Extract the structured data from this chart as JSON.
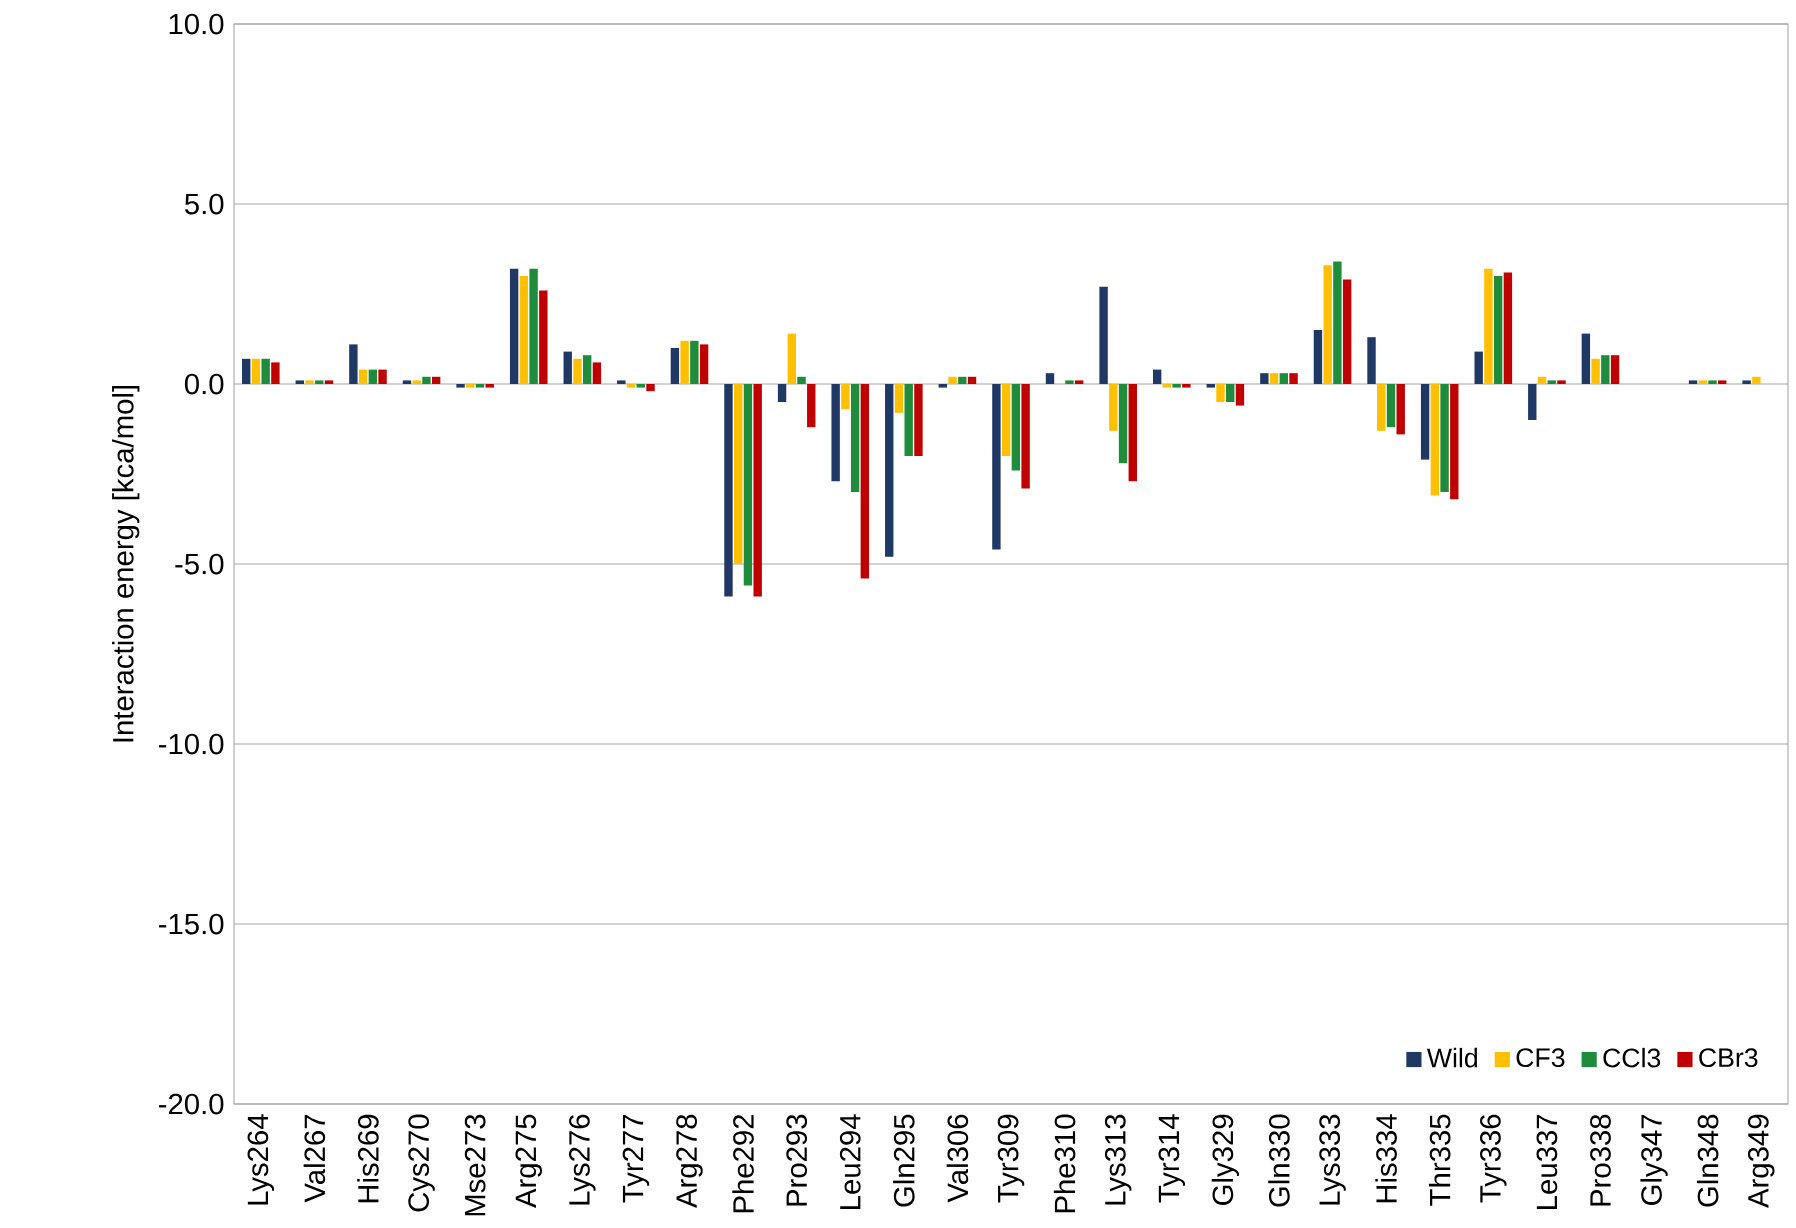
{
  "chart_data": {
    "type": "bar",
    "ylabel": "Interaction energy [kca/mol]",
    "categories": [
      "Lys264",
      "Val267",
      "His269",
      "Cys270",
      "Mse273",
      "Arg275",
      "Lys276",
      "Tyr277",
      "Arg278",
      "Phe292",
      "Pro293",
      "Leu294",
      "Gln295",
      "Val306",
      "Tyr309",
      "Phe310",
      "Lys313",
      "Tyr314",
      "Gly329",
      "Gln330",
      "Lys333",
      "His334",
      "Thr335",
      "Tyr336",
      "Leu337",
      "Pro338",
      "Gly347",
      "Gln348",
      "Arg349"
    ],
    "series": [
      {
        "name": "Wild",
        "color": "#1f3864",
        "values": [
          0.7,
          0.1,
          1.1,
          0.1,
          -0.1,
          3.2,
          0.9,
          0.1,
          1.0,
          -5.9,
          -0.5,
          -2.7,
          -4.8,
          -0.1,
          -4.6,
          0.3,
          2.7,
          0.4,
          -0.1,
          0.3,
          1.5,
          1.3,
          -2.1,
          0.9,
          -1.0,
          1.4,
          0.0,
          0.1,
          0.1
        ]
      },
      {
        "name": "CF3",
        "color": "#ffc000",
        "values": [
          0.7,
          0.1,
          0.4,
          0.1,
          -0.1,
          3.0,
          0.7,
          -0.1,
          1.2,
          -5.0,
          1.4,
          -0.7,
          -0.8,
          0.2,
          -2.0,
          0.0,
          -1.3,
          -0.1,
          -0.5,
          0.3,
          3.3,
          -1.3,
          -3.1,
          3.2,
          0.2,
          0.7,
          0.0,
          0.1,
          0.2
        ]
      },
      {
        "name": "CCl3",
        "color": "#1e8c3a",
        "values": [
          0.7,
          0.1,
          0.4,
          0.2,
          -0.1,
          3.2,
          0.8,
          -0.1,
          1.2,
          -5.6,
          0.2,
          -3.0,
          -2.0,
          0.2,
          -2.4,
          0.1,
          -2.2,
          -0.1,
          -0.5,
          0.3,
          3.4,
          -1.2,
          -3.0,
          3.0,
          0.1,
          0.8,
          0.0,
          0.1,
          null
        ]
      },
      {
        "name": "CBr3",
        "color": "#c00000",
        "values": [
          0.6,
          0.1,
          0.4,
          0.2,
          -0.1,
          2.6,
          0.6,
          -0.2,
          1.1,
          -5.9,
          -1.2,
          -5.4,
          -2.0,
          0.2,
          -2.9,
          0.1,
          -2.7,
          -0.1,
          -0.6,
          0.3,
          2.9,
          -1.4,
          -3.2,
          3.1,
          0.1,
          0.8,
          0.0,
          0.1,
          null
        ]
      }
    ],
    "ylim": [
      -20,
      10
    ],
    "yticks": [
      {
        "value": -20,
        "label": "-20.0"
      },
      {
        "value": -15,
        "label": "-15.0"
      },
      {
        "value": -10,
        "label": "-10.0"
      },
      {
        "value": -5,
        "label": "-5.0"
      },
      {
        "value": 0,
        "label": "0.0"
      },
      {
        "value": 5,
        "label": "5.0"
      },
      {
        "value": 10,
        "label": "10.0"
      }
    ],
    "grid": "y",
    "legend": "bottom right"
  }
}
